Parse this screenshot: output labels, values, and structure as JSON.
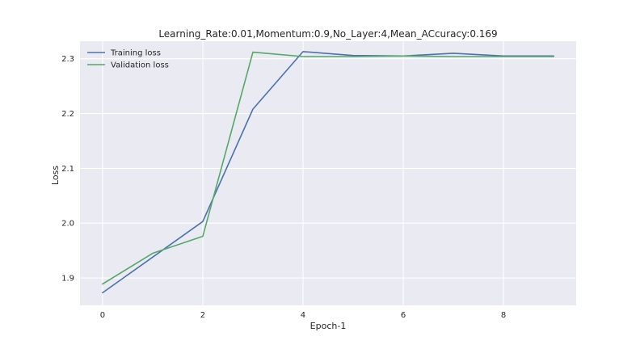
{
  "chart_data": {
    "type": "line",
    "title": "Learning_Rate:0.01,Momentum:0.9,No_Layer:4,Mean_ACcuracy:0.169",
    "xlabel": "Epoch-1",
    "ylabel": "Loss",
    "x": [
      0,
      1,
      2,
      3,
      4,
      5,
      6,
      7,
      8,
      9
    ],
    "xlim": [
      -0.45,
      9.45
    ],
    "ylim": [
      1.85,
      2.332
    ],
    "xticks": [
      0,
      2,
      4,
      6,
      8
    ],
    "yticks": [
      1.9,
      2.0,
      2.1,
      2.2,
      2.3
    ],
    "grid": true,
    "legend_position": "upper-left",
    "background": "#EAEAF2",
    "series": [
      {
        "name": "Training loss",
        "color": "#4C72B0",
        "values": [
          1.873,
          1.938,
          2.003,
          2.208,
          2.313,
          2.306,
          2.305,
          2.31,
          2.305,
          2.305
        ]
      },
      {
        "name": "Validation loss",
        "color": "#55A868",
        "values": [
          1.889,
          1.945,
          1.976,
          2.312,
          2.304,
          2.304,
          2.305,
          2.304,
          2.304,
          2.304
        ]
      }
    ]
  }
}
